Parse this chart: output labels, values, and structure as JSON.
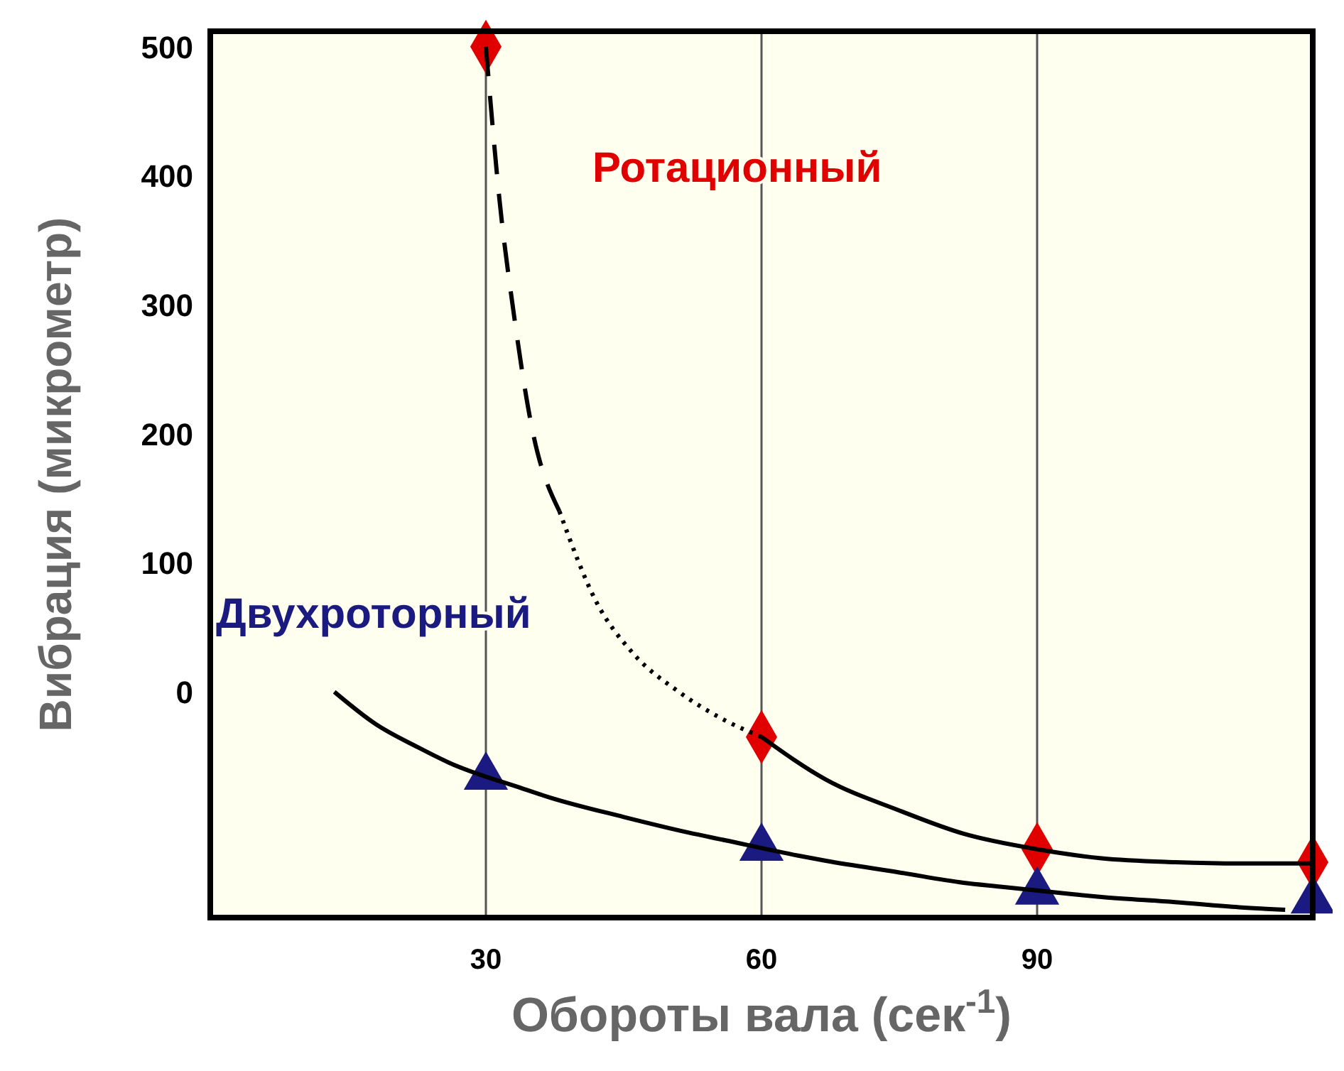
{
  "chart_data": {
    "type": "scatter",
    "xlabel": "Обороты вала (сек$^{-1}$)",
    "ylabel": "Вибрация  (микрометр)",
    "xlim": [
      0,
      120
    ],
    "ylim": [
      -175,
      512
    ],
    "xticks": [
      30,
      60,
      90
    ],
    "yticks": [
      0,
      100,
      200,
      300,
      400,
      500
    ],
    "grid": "x",
    "series": [
      {
        "type": "line",
        "color": "#000000",
        "line_style": "dashed",
        "marker": "none",
        "x": [
          30,
          31.5,
          33,
          35,
          38
        ],
        "values": [
          500,
          380,
          295,
          205,
          140
        ]
      },
      {
        "type": "line",
        "color": "#000000",
        "line_style": "dotted",
        "marker": "none",
        "x": [
          38,
          42,
          46,
          51,
          56,
          60
        ],
        "values": [
          140,
          70,
          30,
          0,
          -22,
          -35
        ]
      },
      {
        "type": "line",
        "color": "#000000",
        "line_style": "solid",
        "marker": "none",
        "x": [
          60,
          67,
          75,
          82,
          90,
          97,
          105,
          112,
          120
        ],
        "values": [
          -35,
          -68,
          -92,
          -110,
          -122,
          -129,
          -132,
          -133,
          -133
        ]
      },
      {
        "type": "line",
        "color": "#000000",
        "line_style": "solid",
        "marker": "none",
        "x": [
          13.5,
          18,
          22.6,
          26,
          34,
          37,
          45,
          52,
          56,
          64,
          67,
          75,
          82,
          86,
          94,
          97,
          105,
          112,
          117
        ],
        "values": [
          0,
          -25,
          -43,
          -55,
          -75,
          -82,
          -97,
          -109,
          -115,
          -127,
          -131,
          -140,
          -148,
          -151,
          -157,
          -159,
          -163,
          -167,
          -169
        ]
      },
      {
        "name": "Ротационный",
        "color": "#e00000",
        "marker": "diamond",
        "x": [
          30,
          60,
          90,
          120
        ],
        "values": [
          500,
          -35,
          -122,
          -132
        ]
      },
      {
        "name": "Двухроторный",
        "color": "#1a1a80",
        "marker": "triangle",
        "x": [
          30,
          60,
          90,
          120
        ],
        "values": [
          -66,
          -121,
          -155,
          -162
        ]
      }
    ]
  }
}
